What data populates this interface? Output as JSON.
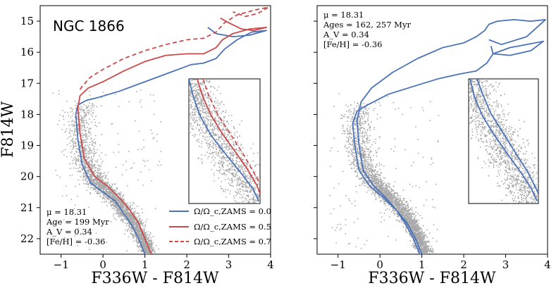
{
  "chart_data": [
    {
      "type": "scatter",
      "panel": "left",
      "title": "NGC 1866",
      "xlabel": "F336W - F814W",
      "ylabel": "F814W",
      "xlim": [
        -1.5,
        4.0
      ],
      "ylim": [
        22.5,
        14.5
      ],
      "y_inverted": true,
      "xticks": [
        -1,
        0,
        1,
        2,
        3,
        4
      ],
      "yticks": [
        15,
        16,
        17,
        18,
        19,
        20,
        21,
        22
      ],
      "annotation": [
        "μ = 18.31",
        "Age = 199 Myr",
        "A_V = 0.34",
        "[Fe/H] = -0.36"
      ],
      "scatter_color": "#a8a8a8",
      "legend": {
        "location": "lower-right",
        "entries": [
          {
            "label": "Ω/Ω_c,ZAMS = 0.0",
            "color": "#4a72b8",
            "style": "solid"
          },
          {
            "label": "Ω/Ω_c,ZAMS = 0.5",
            "color": "#cc4a4a",
            "style": "solid"
          },
          {
            "label": "Ω/Ω_c,ZAMS = 0.7",
            "color": "#cc4a4a",
            "style": "dashed"
          }
        ]
      },
      "series": [
        {
          "name": "Ω/Ω_c,ZAMS = 0.0",
          "color": "#4a72b8",
          "dash": false,
          "x": [
            1.0,
            0.85,
            0.7,
            0.5,
            0.3,
            0.0,
            -0.3,
            -0.5,
            -0.6,
            -0.65,
            -0.6,
            -0.4,
            -0.1,
            0.4,
            1.0,
            1.6,
            2.1,
            2.4,
            2.7,
            2.9,
            3.2,
            3.55,
            3.9,
            3.5,
            3.1,
            2.7,
            2.5
          ],
          "y": [
            22.5,
            22.0,
            21.6,
            21.2,
            20.8,
            20.5,
            20.2,
            19.6,
            18.8,
            18.0,
            17.7,
            17.55,
            17.45,
            17.25,
            16.95,
            16.65,
            16.4,
            16.35,
            16.2,
            15.9,
            15.6,
            15.35,
            15.3,
            15.45,
            15.5,
            15.4,
            15.2
          ]
        },
        {
          "name": "Ω/Ω_c,ZAMS = 0.5",
          "color": "#cc4a4a",
          "dash": false,
          "x": [
            1.15,
            1.0,
            0.85,
            0.65,
            0.4,
            0.1,
            -0.2,
            -0.45,
            -0.55,
            -0.6,
            -0.55,
            -0.35,
            0.0,
            0.5,
            1.0,
            1.5,
            2.0,
            2.4,
            2.7,
            2.85,
            3.1,
            3.5,
            3.9,
            3.6,
            3.3,
            3.0,
            2.8
          ],
          "y": [
            22.5,
            22.0,
            21.5,
            21.1,
            20.7,
            20.3,
            20.0,
            19.4,
            18.6,
            17.8,
            17.4,
            17.15,
            16.95,
            16.6,
            16.3,
            16.1,
            16.05,
            16.05,
            15.85,
            15.6,
            15.4,
            15.25,
            15.2,
            15.3,
            15.25,
            15.05,
            14.9
          ]
        },
        {
          "name": "Ω/Ω_c,ZAMS = 0.7",
          "color": "#cc4a4a",
          "dash": true,
          "x": [
            -0.55,
            -0.5,
            -0.3,
            0.0,
            0.5,
            1.0,
            1.5,
            2.0,
            2.4,
            2.7,
            2.9,
            3.2,
            3.6,
            3.95,
            3.7,
            3.4,
            3.1
          ],
          "y": [
            17.2,
            17.1,
            16.8,
            16.55,
            16.2,
            15.95,
            15.75,
            15.6,
            15.55,
            15.35,
            15.05,
            14.8,
            14.65,
            14.55,
            14.75,
            14.85,
            14.7
          ]
        }
      ],
      "inset": {
        "location": "right",
        "series": [
          {
            "name": "Ω/Ω_c,ZAMS = 0.0",
            "color": "#4a72b8",
            "dash": false,
            "x": [
              0.0,
              0.06,
              0.16,
              0.32,
              0.54,
              0.74,
              0.9,
              0.98
            ],
            "y": [
              0.0,
              0.14,
              0.3,
              0.46,
              0.62,
              0.76,
              0.88,
              0.98
            ]
          },
          {
            "name": "Ω/Ω_c,ZAMS = 0.5",
            "color": "#cc4a4a",
            "dash": false,
            "x": [
              0.12,
              0.18,
              0.3,
              0.47,
              0.67,
              0.84,
              0.96,
              1.0
            ],
            "y": [
              0.0,
              0.12,
              0.28,
              0.44,
              0.6,
              0.74,
              0.86,
              0.92
            ]
          },
          {
            "name": "Ω/Ω_c,ZAMS = 0.7",
            "color": "#cc4a4a",
            "dash": true,
            "x": [
              0.2,
              0.27,
              0.4,
              0.58,
              0.76,
              0.9,
              1.0
            ],
            "y": [
              0.0,
              0.12,
              0.28,
              0.44,
              0.6,
              0.74,
              0.84
            ]
          }
        ]
      }
    },
    {
      "type": "scatter",
      "panel": "right",
      "xlabel": "F336W - F814W",
      "xlim": [
        -1.5,
        4.0
      ],
      "ylim": [
        22.5,
        14.5
      ],
      "y_inverted": true,
      "xticks": [
        -1,
        0,
        1,
        2,
        3,
        4
      ],
      "annotation": [
        "μ = 18.31",
        "Ages = 162, 257 Myr",
        "A_V = 0.34",
        "[Fe/H] = -0.36"
      ],
      "scatter_color": "#a8a8a8",
      "series": [
        {
          "name": "162 Myr",
          "color": "#4a72b8",
          "dash": false,
          "x": [
            0.95,
            0.8,
            0.6,
            0.4,
            0.15,
            -0.15,
            -0.4,
            -0.5,
            -0.55,
            -0.45,
            -0.2,
            0.3,
            0.9,
            1.5,
            2.0,
            2.3,
            2.5,
            2.6,
            2.8,
            3.2,
            3.6,
            3.95,
            3.5,
            2.9,
            2.6
          ],
          "y": [
            22.5,
            22.0,
            21.5,
            21.1,
            20.7,
            20.3,
            19.8,
            19.0,
            18.2,
            17.6,
            17.15,
            16.65,
            16.2,
            15.85,
            15.7,
            15.5,
            15.3,
            15.1,
            15.0,
            14.95,
            15.0,
            14.95,
            15.5,
            15.75,
            15.6
          ]
        },
        {
          "name": "257 Myr",
          "color": "#4a72b8",
          "dash": false,
          "x": [
            1.0,
            0.85,
            0.65,
            0.4,
            0.1,
            -0.25,
            -0.5,
            -0.6,
            -0.65,
            -0.55,
            -0.3,
            0.2,
            0.8,
            1.4,
            1.9,
            2.3,
            2.55,
            2.7,
            3.1,
            3.5,
            3.9,
            3.6,
            3.1,
            2.7,
            2.65
          ],
          "y": [
            22.5,
            22.0,
            21.5,
            21.1,
            20.7,
            20.3,
            19.8,
            19.0,
            18.3,
            17.9,
            17.7,
            17.35,
            17.1,
            16.85,
            16.7,
            16.6,
            16.35,
            16.05,
            15.85,
            15.75,
            15.65,
            15.95,
            16.1,
            16.05,
            15.8
          ]
        }
      ],
      "inset": {
        "location": "right",
        "series": [
          {
            "name": "162 Myr",
            "color": "#4a72b8",
            "dash": false,
            "x": [
              0.02,
              0.08,
              0.2,
              0.38,
              0.58,
              0.76,
              0.9,
              0.98
            ],
            "y": [
              0.0,
              0.14,
              0.3,
              0.46,
              0.62,
              0.76,
              0.88,
              0.98
            ]
          },
          {
            "name": "257 Myr",
            "color": "#4a72b8",
            "dash": false,
            "x": [
              0.12,
              0.2,
              0.32,
              0.5,
              0.68,
              0.84,
              0.95,
              1.0
            ],
            "y": [
              0.0,
              0.12,
              0.28,
              0.44,
              0.6,
              0.74,
              0.86,
              0.92
            ]
          }
        ]
      }
    }
  ]
}
